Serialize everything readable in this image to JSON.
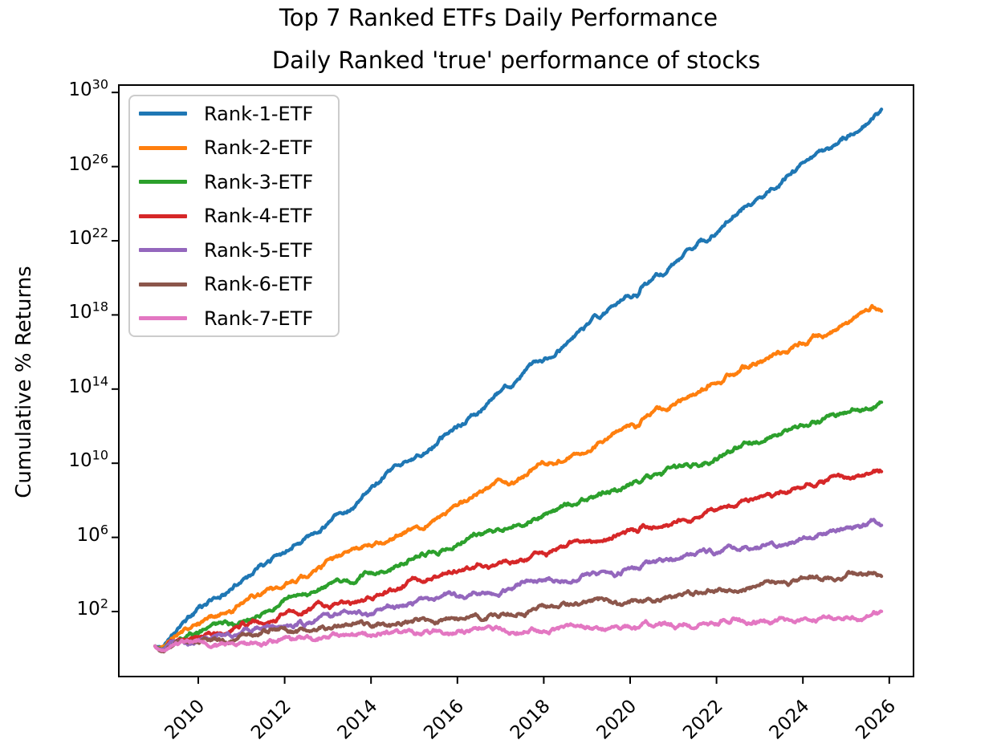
{
  "figure": {
    "suptitle": "Top 7 Ranked ETFs Daily Performance",
    "axes_title": "Daily Ranked 'true' performance of stocks",
    "ylabel": "Cumulative % Returns"
  },
  "chart_data": {
    "type": "line",
    "title": "Top 7 Ranked ETFs Daily Performance",
    "subtitle": "Daily Ranked 'true' performance of stocks",
    "xlabel": "",
    "ylabel": "Cumulative % Returns",
    "yscale": "log",
    "grid": false,
    "legend_position": "upper left",
    "xticks": [
      2010,
      2012,
      2014,
      2016,
      2018,
      2020,
      2022,
      2024,
      2026
    ],
    "ytick_exponents": [
      30,
      26,
      22,
      18,
      14,
      10,
      6,
      2
    ],
    "xlim": [
      2008.16,
      2026.56
    ],
    "ylim_log10": [
      -1.5,
      30.43
    ],
    "x_start": 2009.0,
    "x_end": 2025.83,
    "start_log10": 0.14,
    "start_dip_log10": 0.32,
    "covid_dip_year": 2020.18,
    "series": [
      {
        "name": "Rank-1-ETF",
        "color": "#1f77b4",
        "end_log10": 29.0
      },
      {
        "name": "Rank-2-ETF",
        "color": "#ff7f0e",
        "end_log10": 18.4
      },
      {
        "name": "Rank-3-ETF",
        "color": "#2ca02c",
        "end_log10": 13.3
      },
      {
        "name": "Rank-4-ETF",
        "color": "#d62728",
        "end_log10": 9.6
      },
      {
        "name": "Rank-5-ETF",
        "color": "#9467bd",
        "end_log10": 6.7
      },
      {
        "name": "Rank-6-ETF",
        "color": "#8c564b",
        "end_log10": 4.1
      },
      {
        "name": "Rank-7-ETF",
        "color": "#e377c2",
        "end_log10": 1.87
      }
    ]
  }
}
